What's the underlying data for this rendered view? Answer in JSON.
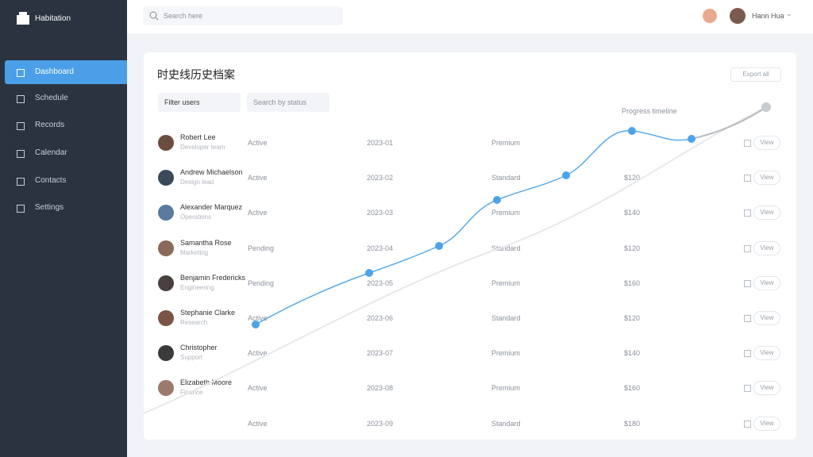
{
  "sidebar": {
    "brand": "Habitation",
    "menu": [
      "Dashboard",
      "Schedule",
      "Records",
      "Calendar",
      "Contacts",
      "Settings"
    ]
  },
  "topbar": {
    "search": "Search here",
    "user": "Hann Hua"
  },
  "card": {
    "title": "时史线历史档案",
    "action": "Export all",
    "filters": [
      "Filter users",
      "Search by status"
    ],
    "chart_label": "Progress timeline",
    "rows": [
      {
        "name": "Robert Lee",
        "sub": "Developer team",
        "c1": "Active",
        "c2": "2023-01",
        "c3": "Premium",
        "c4": "",
        "action": "View"
      },
      {
        "name": "Andrew Michaelson",
        "sub": "Design lead",
        "c1": "Active",
        "c2": "2023-02",
        "c3": "Standard",
        "c4": "$120",
        "action": "View"
      },
      {
        "name": "Alexander Marquez",
        "sub": "Operations",
        "c1": "Active",
        "c2": "2023-03",
        "c3": "Premium",
        "c4": "$140",
        "action": "View"
      },
      {
        "name": "Samantha Rose",
        "sub": "Marketing",
        "c1": "Pending",
        "c2": "2023-04",
        "c3": "Standard",
        "c4": "$120",
        "action": "View"
      },
      {
        "name": "Benjamin Fredericks",
        "sub": "Engineering",
        "c1": "Pending",
        "c2": "2023-05",
        "c3": "Premium",
        "c4": "$160",
        "action": "View"
      },
      {
        "name": "Stephanie Clarke",
        "sub": "Research",
        "c1": "Active",
        "c2": "2023-06",
        "c3": "Standard",
        "c4": "$120",
        "action": "View"
      },
      {
        "name": "Christopher",
        "sub": "Support",
        "c1": "Active",
        "c2": "2023-07",
        "c3": "Premium",
        "c4": "$140",
        "action": "View"
      },
      {
        "name": "Elizabeth Moore",
        "sub": "Finance",
        "c1": "Active",
        "c2": "2023-08",
        "c3": "Premium",
        "c4": "$160",
        "action": "View"
      },
      {
        "c1": "Active",
        "c2": "2023-09",
        "c3": "Standard",
        "c4": "$180",
        "action": "View"
      }
    ]
  }
}
